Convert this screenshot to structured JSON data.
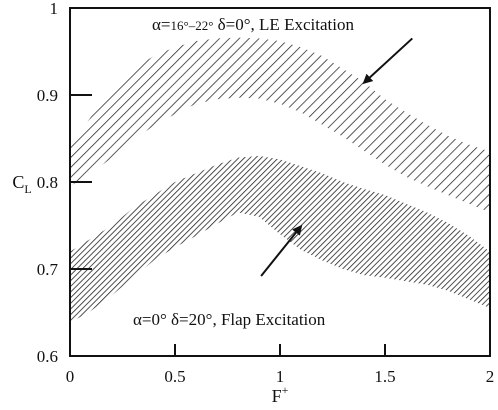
{
  "chart_data": {
    "type": "area",
    "xlabel_base": "F",
    "xlabel_sup": "+",
    "ylabel_base": "C",
    "ylabel_sub": "L",
    "xlim": [
      0,
      2
    ],
    "ylim": [
      0.6,
      1.0
    ],
    "x_ticks": [
      0,
      0.5,
      1,
      1.5,
      2
    ],
    "x_tick_labels": [
      "0",
      "0.5",
      "1",
      "1.5",
      "2"
    ],
    "y_ticks": [
      0.6,
      0.7,
      0.8,
      0.9,
      1.0
    ],
    "y_tick_labels": [
      "0.6",
      "0.7",
      "0.8",
      "0.9",
      "1"
    ],
    "grid": false,
    "series": [
      {
        "id": "le",
        "hatch_color": "#222222",
        "x": [
          0.0,
          0.1,
          0.2,
          0.3,
          0.4,
          0.5,
          0.6,
          0.7,
          0.8,
          0.9,
          1.0,
          1.1,
          1.2,
          1.3,
          1.4,
          1.5,
          1.6,
          1.7,
          1.8,
          1.9,
          2.0
        ],
        "upper": [
          0.84,
          0.875,
          0.905,
          0.93,
          0.945,
          0.955,
          0.962,
          0.965,
          0.966,
          0.965,
          0.962,
          0.955,
          0.945,
          0.93,
          0.915,
          0.895,
          0.88,
          0.866,
          0.853,
          0.843,
          0.835
        ],
        "lower": [
          0.795,
          0.81,
          0.828,
          0.848,
          0.865,
          0.878,
          0.89,
          0.895,
          0.897,
          0.896,
          0.89,
          0.88,
          0.866,
          0.852,
          0.836,
          0.82,
          0.806,
          0.795,
          0.785,
          0.775,
          0.765
        ]
      },
      {
        "id": "flap",
        "hatch_color": "#222222",
        "x": [
          0.0,
          0.1,
          0.2,
          0.3,
          0.4,
          0.5,
          0.6,
          0.7,
          0.8,
          0.9,
          1.0,
          1.1,
          1.2,
          1.3,
          1.4,
          1.5,
          1.6,
          1.7,
          1.8,
          1.9,
          2.0
        ],
        "upper": [
          0.72,
          0.735,
          0.75,
          0.77,
          0.785,
          0.8,
          0.81,
          0.82,
          0.828,
          0.83,
          0.826,
          0.818,
          0.81,
          0.8,
          0.792,
          0.785,
          0.775,
          0.765,
          0.753,
          0.738,
          0.72
        ],
        "lower": [
          0.638,
          0.652,
          0.67,
          0.69,
          0.71,
          0.725,
          0.738,
          0.752,
          0.765,
          0.76,
          0.74,
          0.722,
          0.71,
          0.7,
          0.693,
          0.69,
          0.686,
          0.682,
          0.675,
          0.665,
          0.655
        ]
      }
    ],
    "annotations": [
      {
        "id": "le-label",
        "alpha": "α=",
        "range": "16°–22°",
        "rest": " δ=0°,  LE  Excitation",
        "anchor_x": 0.39,
        "anchor_y": 0.985,
        "arrow_from": [
          1.63,
          0.965
        ],
        "arrow_to": [
          1.4,
          0.914
        ]
      },
      {
        "id": "flap-label",
        "text": "α=0°  δ=20°,  Flap Excitation",
        "anchor_x": 0.3,
        "anchor_y": 0.64,
        "arrow_from": [
          0.91,
          0.692
        ],
        "arrow_to": [
          1.1,
          0.749
        ]
      }
    ]
  }
}
